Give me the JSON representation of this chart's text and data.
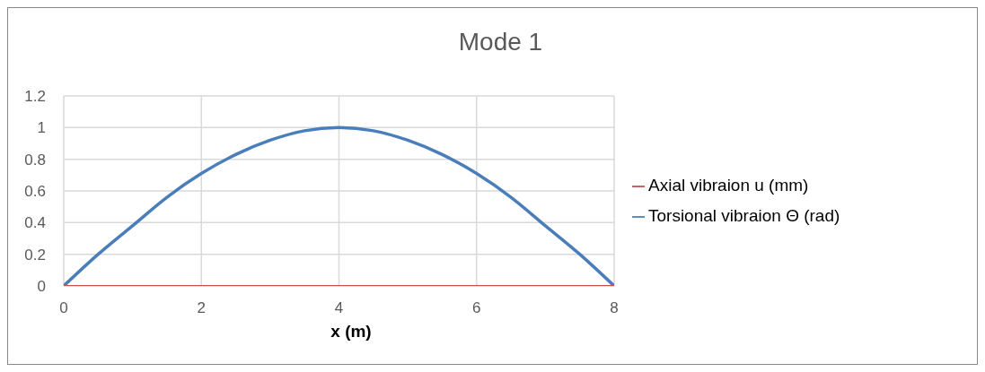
{
  "chart_data": {
    "type": "line",
    "title": "Mode 1",
    "xlabel": "x (m)",
    "x": [
      0,
      0.5,
      1,
      1.5,
      2,
      2.5,
      3,
      3.5,
      4,
      4.5,
      5,
      5.5,
      6,
      6.5,
      7,
      7.5,
      8
    ],
    "series": [
      {
        "name": "Torsional vibraion Θ (rad)",
        "color": "#4a7ebb",
        "values": [
          0,
          0.2,
          0.38,
          0.56,
          0.71,
          0.83,
          0.92,
          0.98,
          1,
          0.98,
          0.92,
          0.83,
          0.71,
          0.56,
          0.38,
          0.2,
          0
        ]
      },
      {
        "name": "Axial vibraion u (mm)",
        "color": "#c0504d",
        "values": [
          0,
          0,
          0,
          0,
          0,
          0,
          0,
          0,
          0,
          0,
          0,
          0,
          0,
          0,
          0,
          0,
          0
        ]
      }
    ],
    "xlim": [
      0,
      8
    ],
    "xticks": [
      0,
      2,
      4,
      6,
      8
    ],
    "ylim": [
      0,
      1.2
    ],
    "yticks": [
      0,
      0.2,
      0.4,
      0.6,
      0.8,
      1,
      1.2
    ],
    "grid": true,
    "legend": "right",
    "marker": "none",
    "line_style": "solid"
  }
}
